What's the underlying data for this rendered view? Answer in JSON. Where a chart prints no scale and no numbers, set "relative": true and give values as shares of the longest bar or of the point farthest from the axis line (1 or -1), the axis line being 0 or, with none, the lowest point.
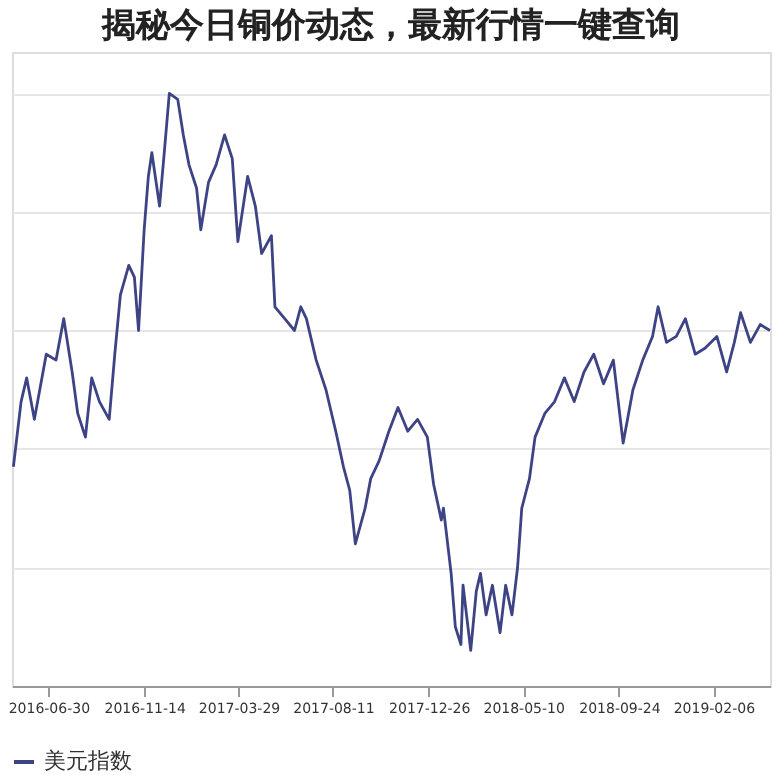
{
  "chart_data": {
    "type": "line",
    "title": "揭秘今日铜价动态，最新行情一键查询",
    "relative": true,
    "grid": "y",
    "legend": "bottom",
    "marker": "none",
    "line_style": "solid",
    "xlim": [
      "2016-05-09",
      "2019-04-28"
    ],
    "xticks": [
      "2016-06-30",
      "2016-11-14",
      "2017-03-29",
      "2017-08-11",
      "2017-12-26",
      "2018-05-10",
      "2018-09-24",
      "2019-02-06"
    ],
    "x": [
      "2016-05-11",
      "2016-05-22",
      "2016-05-30",
      "2016-06-10",
      "2016-06-27",
      "2016-07-11",
      "2016-07-22",
      "2016-08-03",
      "2016-08-11",
      "2016-08-22",
      "2016-08-31",
      "2016-09-11",
      "2016-09-25",
      "2016-10-03",
      "2016-10-11",
      "2016-10-23",
      "2016-10-31",
      "2016-11-06",
      "2016-11-14",
      "2016-11-20",
      "2016-11-25",
      "2016-12-06",
      "2016-12-12",
      "2016-12-20",
      "2017-01-01",
      "2017-01-09",
      "2017-01-17",
      "2017-01-28",
      "2017-02-03",
      "2017-02-14",
      "2017-02-25",
      "2017-03-09",
      "2017-03-20",
      "2017-03-28",
      "2017-04-11",
      "2017-04-22",
      "2017-05-01",
      "2017-05-15",
      "2017-05-20",
      "2017-06-03",
      "2017-06-17",
      "2017-06-26",
      "2017-07-04",
      "2017-07-18",
      "2017-08-01",
      "2017-08-15",
      "2017-08-26",
      "2017-09-04",
      "2017-09-12",
      "2017-09-26",
      "2017-10-04",
      "2017-10-16",
      "2017-10-30",
      "2017-11-12",
      "2017-11-26",
      "2017-12-10",
      "2017-12-24",
      "2018-01-02",
      "2018-01-13",
      "2018-01-16",
      "2018-01-27",
      "2018-02-02",
      "2018-02-10",
      "2018-02-13",
      "2018-02-24",
      "2018-03-04",
      "2018-03-10",
      "2018-03-18",
      "2018-03-27",
      "2018-04-07",
      "2018-04-15",
      "2018-04-24",
      "2018-05-02",
      "2018-05-08",
      "2018-05-19",
      "2018-05-27",
      "2018-06-10",
      "2018-06-24",
      "2018-07-08",
      "2018-07-22",
      "2018-08-05",
      "2018-08-19",
      "2018-09-02",
      "2018-09-16",
      "2018-09-30",
      "2018-10-14",
      "2018-10-28",
      "2018-11-11",
      "2018-11-19",
      "2018-12-01",
      "2018-12-15",
      "2018-12-28",
      "2019-01-11",
      "2019-01-25",
      "2019-02-11",
      "2019-02-25",
      "2019-03-08",
      "2019-03-17",
      "2019-03-31",
      "2019-04-14",
      "2019-04-28"
    ],
    "series": [
      {
        "name": "美元指数",
        "color": "#3d4384",
        "values": [
          0.37,
          0.48,
          0.52,
          0.45,
          0.56,
          0.55,
          0.62,
          0.53,
          0.46,
          0.42,
          0.52,
          0.48,
          0.45,
          0.56,
          0.66,
          0.71,
          0.69,
          0.6,
          0.77,
          0.86,
          0.9,
          0.81,
          0.89,
          1.0,
          0.99,
          0.93,
          0.88,
          0.84,
          0.77,
          0.85,
          0.88,
          0.93,
          0.89,
          0.75,
          0.86,
          0.81,
          0.73,
          0.76,
          0.64,
          0.62,
          0.6,
          0.64,
          0.62,
          0.55,
          0.5,
          0.43,
          0.37,
          0.33,
          0.24,
          0.3,
          0.35,
          0.38,
          0.43,
          0.47,
          0.43,
          0.45,
          0.42,
          0.34,
          0.28,
          0.3,
          0.19,
          0.1,
          0.07,
          0.17,
          0.06,
          0.16,
          0.19,
          0.12,
          0.17,
          0.09,
          0.17,
          0.12,
          0.2,
          0.3,
          0.35,
          0.42,
          0.46,
          0.48,
          0.52,
          0.48,
          0.53,
          0.56,
          0.51,
          0.55,
          0.41,
          0.5,
          0.55,
          0.59,
          0.64,
          0.58,
          0.59,
          0.62,
          0.56,
          0.57,
          0.59,
          0.53,
          0.58,
          0.63,
          0.58,
          0.61,
          0.6
        ]
      }
    ]
  }
}
